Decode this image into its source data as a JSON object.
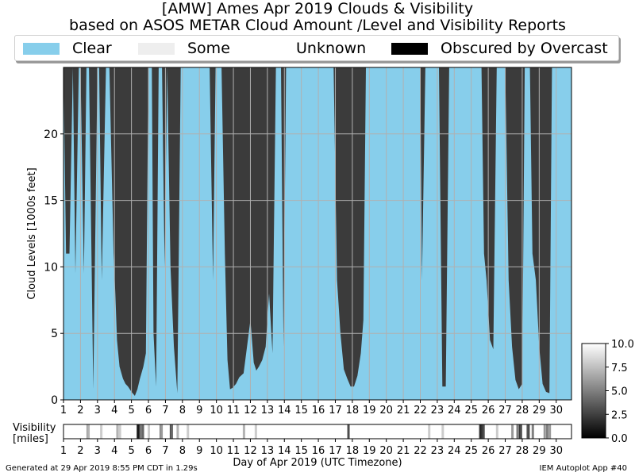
{
  "title_line1": "[AMW] Ames Apr 2019 Clouds & Visibility",
  "title_line2": "based on ASOS METAR Cloud Amount /Level and Visibility Reports",
  "legend": [
    {
      "label": "Clear",
      "color": "#87ceeb"
    },
    {
      "label": "Some",
      "color": "#eeeeee"
    },
    {
      "label": "Unknown",
      "color": "#ffffff"
    },
    {
      "label": "Obscured by Overcast",
      "color": "#000000"
    }
  ],
  "colors": {
    "clear": "#87ceeb",
    "cloud": "#3b3b3b",
    "grid": "#b0b0b0"
  },
  "chart_data": [
    {
      "type": "area",
      "xlabel": "",
      "ylabel": "Cloud Levels [1000s feet]",
      "xlim": [
        1,
        30.9
      ],
      "ylim": [
        0,
        25
      ],
      "x_ticks": [
        "1",
        "2",
        "3",
        "4",
        "5",
        "6",
        "7",
        "8",
        "9",
        "10",
        "11",
        "12",
        "13",
        "14",
        "15",
        "16",
        "17",
        "18",
        "19",
        "20",
        "21",
        "22",
        "23",
        "24",
        "25",
        "26",
        "27",
        "28",
        "29",
        "30"
      ],
      "y_ticks": [
        0,
        5,
        10,
        15,
        20
      ],
      "grid": true,
      "series": [
        {
          "x": [
            1.0,
            1.15,
            1.35,
            1.55,
            1.7,
            1.9,
            2.0,
            2.2,
            2.35,
            2.5,
            2.75,
            3.0,
            3.1,
            3.25,
            3.5,
            3.7,
            3.95,
            4.05,
            4.15,
            4.3,
            4.5,
            4.65,
            4.8,
            5.0,
            5.2,
            5.35,
            5.5,
            5.7,
            5.85,
            6.0,
            6.2,
            6.3,
            6.45,
            6.6,
            6.8,
            6.95,
            7.1,
            7.3,
            7.5,
            7.7,
            7.9,
            8.1,
            8.3,
            8.5,
            8.7,
            8.9,
            9.0,
            9.3,
            9.6,
            9.8,
            9.95,
            10.1,
            10.3,
            10.5,
            10.65,
            10.8,
            10.95,
            11.15,
            11.35,
            11.6,
            11.8,
            12.0,
            12.2,
            12.35,
            12.5,
            12.7,
            12.9,
            13.1,
            13.3,
            13.5,
            13.65,
            13.8,
            13.95,
            14.1,
            14.3,
            14.6,
            15.0,
            15.4,
            15.8,
            16.2,
            16.6,
            16.9,
            17.1,
            17.3,
            17.5,
            17.7,
            17.9,
            18.1,
            18.3,
            18.5,
            18.65,
            18.8,
            18.95,
            19.1,
            19.5,
            20.0,
            20.5,
            21.0,
            21.5,
            22.0,
            22.1,
            22.3,
            22.5,
            22.7,
            22.9,
            23.1,
            23.3,
            23.5,
            23.7,
            23.9,
            24.1,
            24.4,
            24.7,
            25.0,
            25.2,
            25.4,
            25.6,
            25.75,
            25.9,
            26.1,
            26.3,
            26.5,
            26.65,
            26.8,
            27.0,
            27.2,
            27.4,
            27.6,
            27.8,
            28.0,
            28.15,
            28.3,
            28.45,
            28.6,
            28.8,
            29.0,
            29.2,
            29.4,
            29.6,
            29.75,
            29.9,
            30.0,
            30.2,
            30.5,
            30.9
          ],
          "values": [
            25,
            11,
            11,
            25,
            9.5,
            25,
            25,
            9.5,
            25,
            25,
            0.8,
            25,
            25,
            9,
            25,
            25,
            11,
            8,
            4.5,
            2.5,
            1.6,
            1.2,
            1.0,
            0.6,
            0.3,
            0.8,
            1.6,
            2.5,
            3.5,
            25,
            25,
            5,
            1.0,
            25,
            25,
            10,
            25,
            10,
            4,
            0.5,
            25,
            25,
            25,
            25,
            25,
            25,
            25,
            25,
            25,
            9,
            25,
            25,
            25,
            11,
            3,
            0.8,
            0.9,
            1.2,
            1.7,
            2.0,
            4,
            6,
            2.8,
            2.2,
            2.5,
            3.0,
            4,
            8,
            3.5,
            25,
            25,
            25,
            4,
            25,
            25,
            25,
            25,
            25,
            25,
            25,
            25,
            25,
            9,
            5,
            2.3,
            1.6,
            1.0,
            1.0,
            1.8,
            3.5,
            6,
            25,
            25,
            25,
            25,
            25,
            25,
            25,
            25,
            25,
            9,
            25,
            25,
            25,
            25,
            25,
            1.0,
            1.0,
            25,
            25,
            25,
            25,
            25,
            25,
            25,
            25,
            25,
            11,
            9,
            4.5,
            3.8,
            25,
            25,
            25,
            25,
            9,
            4,
            1.5,
            0.8,
            1.2,
            25,
            25,
            25,
            11,
            9,
            4,
            1.2,
            0.6,
            0.5,
            25,
            25,
            25,
            25,
            25,
            25
          ]
        }
      ]
    },
    {
      "type": "heatmap",
      "xlabel": "Day of Apr 2019 (UTC Timezone)",
      "ylabel": "Visibility [miles]",
      "xlim": [
        1,
        30.9
      ],
      "x_ticks": [
        "1",
        "2",
        "3",
        "4",
        "5",
        "6",
        "7",
        "8",
        "9",
        "10",
        "11",
        "12",
        "13",
        "14",
        "15",
        "16",
        "17",
        "18",
        "19",
        "20",
        "21",
        "22",
        "23",
        "24",
        "25",
        "26",
        "27",
        "28",
        "29",
        "30"
      ],
      "colorbar": {
        "vmin": 0.0,
        "vmax": 10.0,
        "ticks": [
          "0.0",
          "2.5",
          "5.0",
          "7.5",
          "10.0"
        ]
      },
      "default_value": 10,
      "reduced_visibility": [
        {
          "x": 2.4,
          "value": 6
        },
        {
          "x": 2.45,
          "value": 7
        },
        {
          "x": 3.2,
          "value": 8
        },
        {
          "x": 4.15,
          "value": 7
        },
        {
          "x": 4.3,
          "value": 8
        },
        {
          "x": 5.35,
          "value": 2
        },
        {
          "x": 5.4,
          "value": 1
        },
        {
          "x": 5.5,
          "value": 3
        },
        {
          "x": 5.55,
          "value": 5
        },
        {
          "x": 5.65,
          "value": 4
        },
        {
          "x": 6.0,
          "value": 8
        },
        {
          "x": 6.7,
          "value": 5
        },
        {
          "x": 6.75,
          "value": 6
        },
        {
          "x": 7.3,
          "value": 3
        },
        {
          "x": 7.35,
          "value": 4
        },
        {
          "x": 7.7,
          "value": 7
        },
        {
          "x": 8.3,
          "value": 8
        },
        {
          "x": 11.6,
          "value": 7
        },
        {
          "x": 12.3,
          "value": 8
        },
        {
          "x": 17.75,
          "value": 3
        },
        {
          "x": 22.5,
          "value": 8
        },
        {
          "x": 23.3,
          "value": 8
        },
        {
          "x": 25.5,
          "value": 4
        },
        {
          "x": 25.55,
          "value": 1
        },
        {
          "x": 25.6,
          "value": 2
        },
        {
          "x": 25.7,
          "value": 3
        },
        {
          "x": 26.5,
          "value": 8
        },
        {
          "x": 27.4,
          "value": 6
        },
        {
          "x": 27.7,
          "value": 5
        },
        {
          "x": 27.85,
          "value": 2
        },
        {
          "x": 27.9,
          "value": 3
        },
        {
          "x": 28.3,
          "value": 4
        },
        {
          "x": 28.35,
          "value": 3
        },
        {
          "x": 28.6,
          "value": 5
        },
        {
          "x": 29.3,
          "value": 6
        },
        {
          "x": 29.45,
          "value": 5
        },
        {
          "x": 29.6,
          "value": 6
        }
      ]
    }
  ],
  "footer_left": "Generated at 29 Apr 2019 8:55 PM CDT in 1.29s",
  "footer_right": "IEM Autoplot App #40"
}
